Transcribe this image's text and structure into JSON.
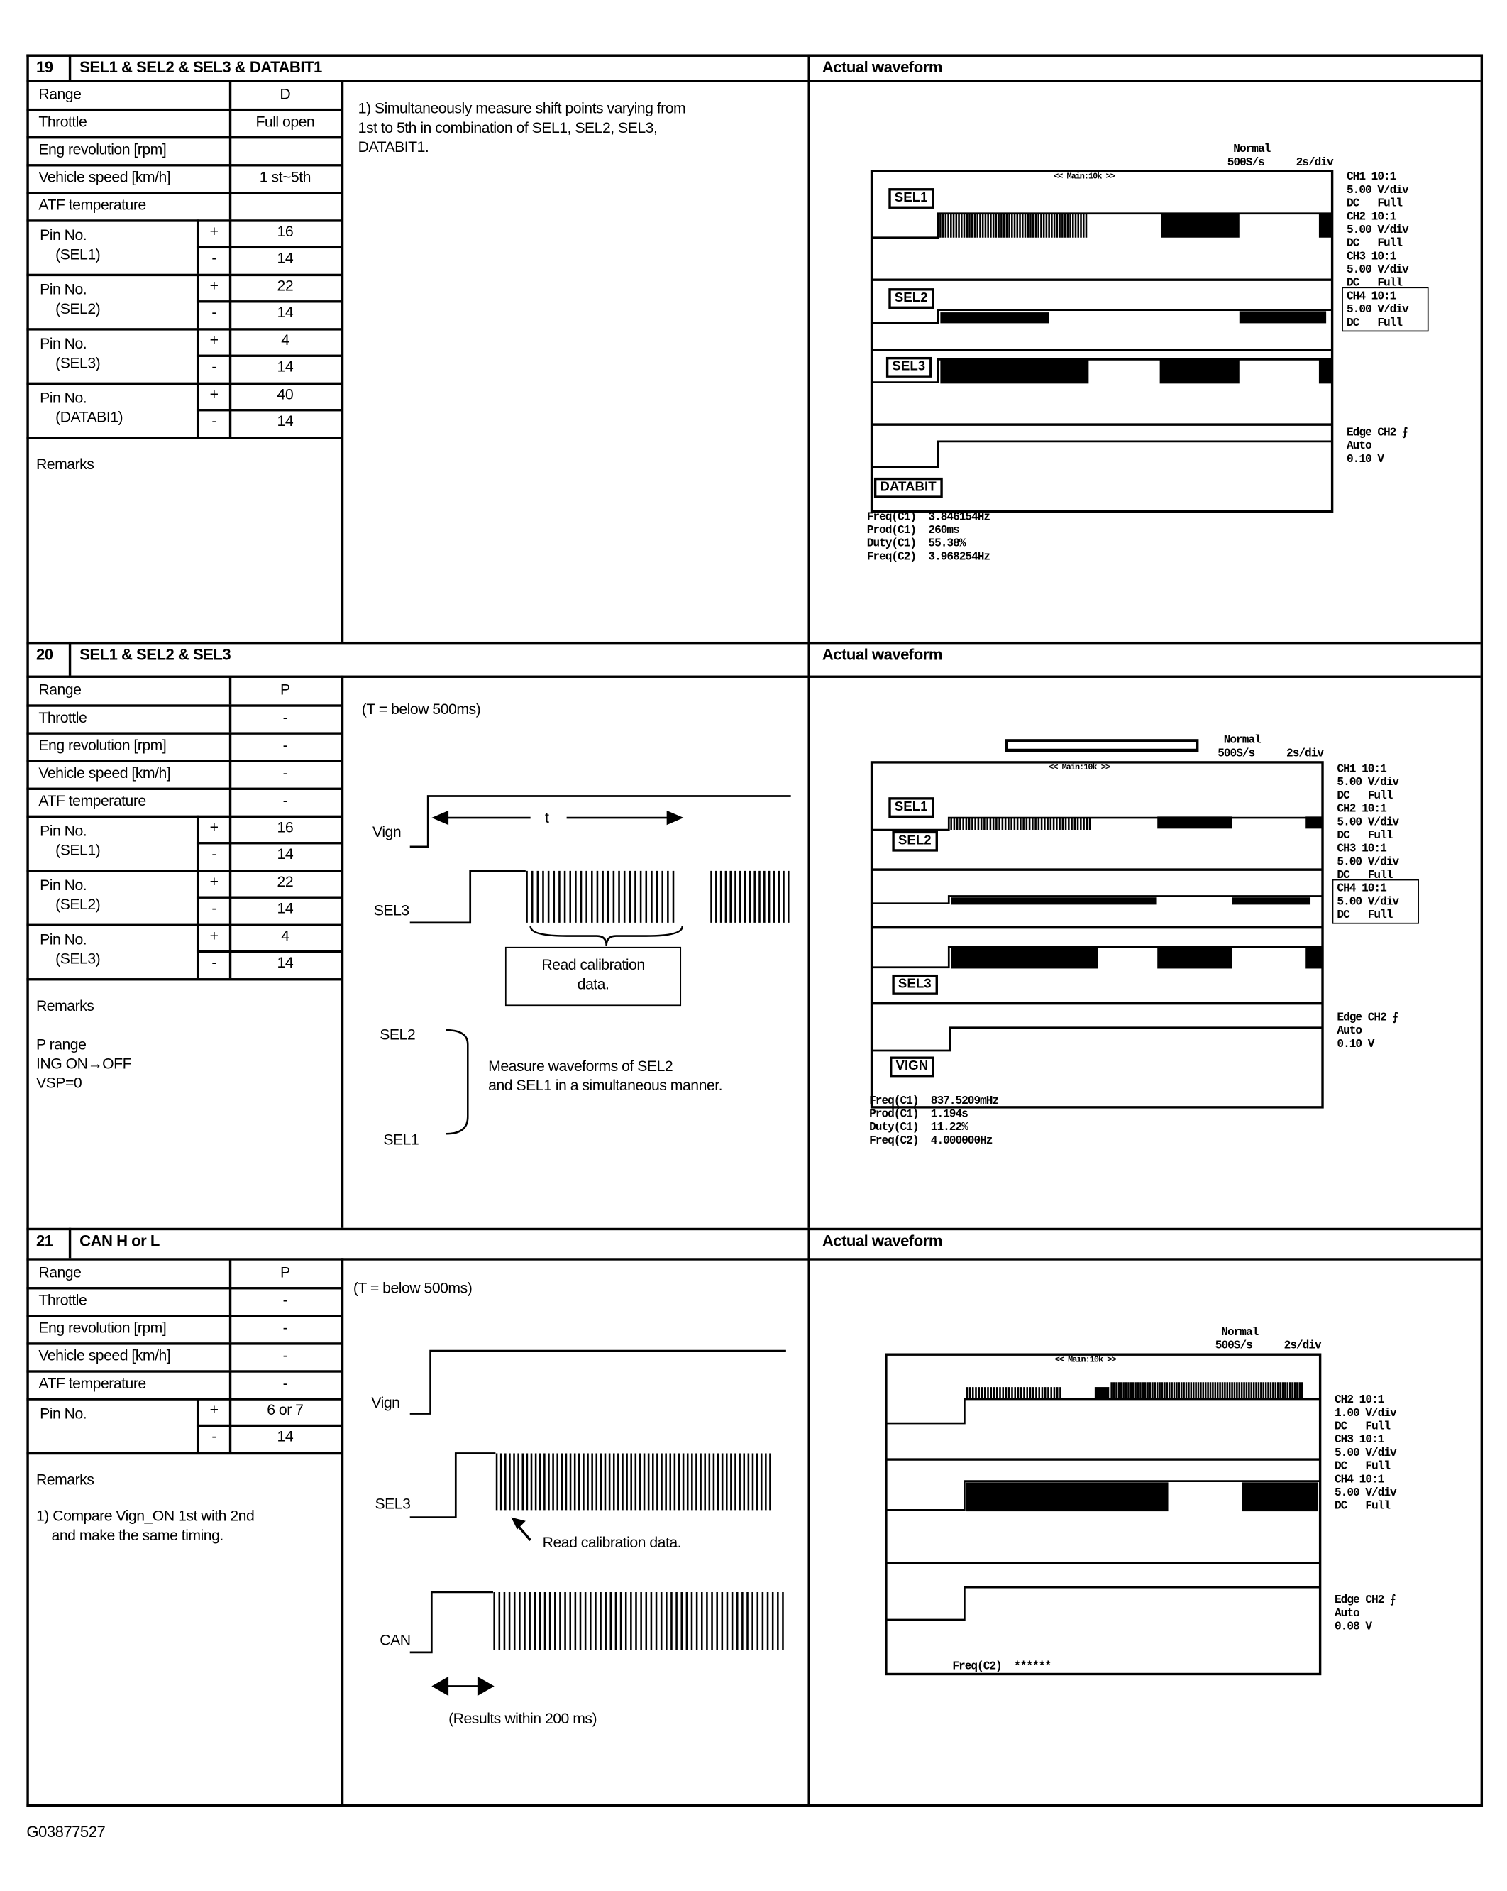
{
  "footer_code": "G03877527",
  "actual_waveform_label": "Actual waveform",
  "sections": [
    {
      "number": "19",
      "title": "SEL1 & SEL2 & SEL3 & DATABIT1",
      "params": [
        {
          "label": "Range",
          "value": "D"
        },
        {
          "label": "Throttle",
          "value": "Full open"
        },
        {
          "label": "Eng revolution [rpm]",
          "value": ""
        },
        {
          "label": "Vehicle speed [km/h]",
          "value": "1 st~5th"
        },
        {
          "label": "ATF temperature",
          "value": ""
        }
      ],
      "pins": [
        {
          "label": "Pin No.",
          "sub": "(SEL1)",
          "plus": "16",
          "minus": "14"
        },
        {
          "label": "Pin No.",
          "sub": "(SEL2)",
          "plus": "22",
          "minus": "14"
        },
        {
          "label": "Pin No.",
          "sub": "(SEL3)",
          "plus": "4",
          "minus": "14"
        },
        {
          "label": "Pin No.",
          "sub": "(DATABI1)",
          "plus": "40",
          "minus": "14"
        }
      ],
      "remarks_label": "Remarks",
      "remarks": [],
      "description": [
        "1) Simultaneously measure shift points varying from",
        "1st to 5th in combination of SEL1, SEL2, SEL3,",
        "DATABIT1."
      ],
      "scope": {
        "mode": "Normal",
        "rate": "500S/s",
        "timebase": "2s/div",
        "zoom_label": "<< Main:10k >>",
        "channel_labels": [
          "SEL1",
          "SEL2",
          "SEL3",
          "DATABIT"
        ],
        "settings": [
          "CH1 10:1",
          "5.00 V/div",
          "DC   Full",
          "CH2 10:1",
          "5.00 V/div",
          "DC   Full",
          "CH3 10:1",
          "5.00 V/div",
          "DC   Full",
          "CH4 10:1",
          "5.00 V/div",
          "DC   Full"
        ],
        "trigger": [
          "Edge CH2 ⨍",
          "Auto",
          "0.10 V"
        ],
        "measurements": [
          "Freq(C1)  3.846154Hz",
          "Prod(C1)  260ms",
          "Duty(C1)  55.38%",
          "Freq(C2)  3.968254Hz"
        ]
      }
    },
    {
      "number": "20",
      "title": "SEL1 & SEL2 & SEL3",
      "params": [
        {
          "label": "Range",
          "value": "P"
        },
        {
          "label": "Throttle",
          "value": "-"
        },
        {
          "label": "Eng revolution [rpm]",
          "value": "-"
        },
        {
          "label": "Vehicle speed [km/h]",
          "value": "-"
        },
        {
          "label": "ATF temperature",
          "value": "-"
        }
      ],
      "pins": [
        {
          "label": "Pin No.",
          "sub": "(SEL1)",
          "plus": "16",
          "minus": "14"
        },
        {
          "label": "Pin No.",
          "sub": "(SEL2)",
          "plus": "22",
          "minus": "14"
        },
        {
          "label": "Pin No.",
          "sub": "(SEL3)",
          "plus": "4",
          "minus": "14"
        }
      ],
      "remarks_label": "Remarks",
      "remarks": [
        "P range",
        "ING ON→OFF",
        "VSP=0"
      ],
      "diagram": {
        "t_note": "(T = below 500ms)",
        "vign": "Vign",
        "t": "t",
        "sel3": "SEL3",
        "calib": [
          "Read calibration",
          "data."
        ],
        "sel2": "SEL2",
        "sel1": "SEL1",
        "measure": [
          "Measure waveforms of SEL2",
          "and SEL1 in a simultaneous manner."
        ]
      },
      "scope": {
        "mode": "Normal",
        "rate": "500S/s",
        "timebase": "2s/div",
        "zoom_label": "<< Main:10k >>",
        "channel_labels": [
          "SEL1",
          "SEL2",
          "SEL3",
          "VIGN"
        ],
        "settings": [
          "CH1 10:1",
          "5.00 V/div",
          "DC   Full",
          "CH2 10:1",
          "5.00 V/div",
          "DC   Full",
          "CH3 10:1",
          "5.00 V/div",
          "DC   Full",
          "CH4 10:1",
          "5.00 V/div",
          "DC   Full"
        ],
        "trigger": [
          "Edge CH2 ⨍",
          "Auto",
          "0.10 V"
        ],
        "measurements": [
          "Freq(C1)  837.5209mHz",
          "Prod(C1)  1.194s",
          "Duty(C1)  11.22%",
          "Freq(C2)  4.000000Hz"
        ]
      }
    },
    {
      "number": "21",
      "title": "CAN   H or L",
      "params": [
        {
          "label": "Range",
          "value": "P"
        },
        {
          "label": "Throttle",
          "value": "-"
        },
        {
          "label": "Eng revolution [rpm]",
          "value": "-"
        },
        {
          "label": "Vehicle speed [km/h]",
          "value": "-"
        },
        {
          "label": "ATF temperature",
          "value": "-"
        }
      ],
      "pins": [
        {
          "label": "Pin No.",
          "sub": "",
          "plus": "6   or   7",
          "minus": "14"
        }
      ],
      "remarks_label": "Remarks",
      "remarks": [
        "1) Compare Vign_ON 1st with 2nd",
        "    and make the same timing."
      ],
      "diagram": {
        "t_note": "(T = below 500ms)",
        "vign": "Vign",
        "sel3": "SEL3",
        "calib": "Read calibration data.",
        "can": "CAN",
        "results": "(Results within 200 ms)"
      },
      "scope": {
        "mode": "Normal",
        "rate": "500S/s",
        "timebase": "2s/div",
        "zoom_label": "<< Main:10k >>",
        "channel_labels": [],
        "settings": [
          "CH2 10:1",
          "1.00 V/div",
          "DC   Full",
          "CH3 10:1",
          "5.00 V/div",
          "DC   Full",
          "CH4 10:1",
          "5.00 V/div",
          "DC   Full"
        ],
        "trigger": [
          "Edge CH2 ⨍",
          "Auto",
          "0.08 V"
        ],
        "measurements": [
          "Freq(C2)  ******"
        ]
      }
    }
  ]
}
